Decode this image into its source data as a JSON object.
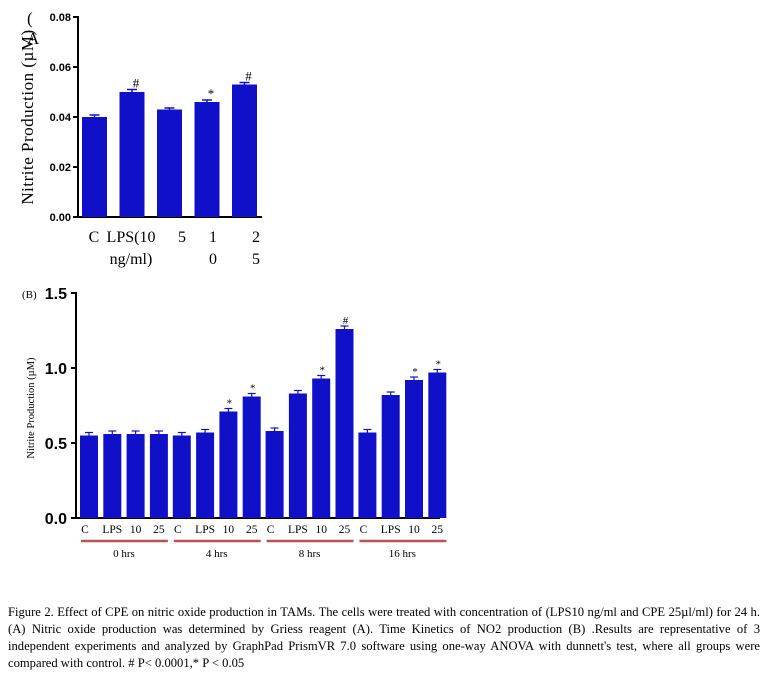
{
  "chart_data": [
    {
      "type": "bar",
      "panel_label": "(A",
      "ylabel": "Nitrite Production (µM)",
      "ylim": [
        0,
        0.08
      ],
      "yticks": [
        "0.00",
        "0.02",
        "0.04",
        "0.06",
        "0.08"
      ],
      "categories": [
        [
          "C"
        ],
        [
          "LPS(10",
          "ng/ml)"
        ],
        [
          "5"
        ],
        [
          "1",
          "0"
        ],
        [
          "2",
          "5"
        ]
      ],
      "values": [
        0.04,
        0.05,
        0.043,
        0.046,
        0.053
      ],
      "errors": [
        0.0008,
        0.001,
        0.0006,
        0.0008,
        0.0008
      ],
      "annotations": [
        "",
        "#",
        "",
        "*",
        "#"
      ],
      "bar_color": "#1010c8"
    },
    {
      "type": "bar",
      "panel_label": "(B)",
      "ylabel": "Nitrite Production (µM)",
      "ylim": [
        0,
        1.5
      ],
      "yticks": [
        "0.0",
        "0.5",
        "1.0",
        "1.5"
      ],
      "groups": [
        {
          "name": "0 hrs",
          "categories": [
            "C",
            "LPS",
            "10",
            "25"
          ],
          "values": [
            0.55,
            0.56,
            0.56,
            0.56
          ],
          "annotations": [
            "",
            "",
            "",
            ""
          ]
        },
        {
          "name": "4 hrs",
          "categories": [
            "C",
            "LPS",
            "10",
            "25"
          ],
          "values": [
            0.55,
            0.57,
            0.71,
            0.81
          ],
          "annotations": [
            "",
            "",
            "*",
            "*"
          ]
        },
        {
          "name": "8 hrs",
          "categories": [
            "C",
            "LPS",
            "10",
            "25"
          ],
          "values": [
            0.58,
            0.83,
            0.93,
            1.26
          ],
          "annotations": [
            "",
            "",
            "*",
            "#"
          ]
        },
        {
          "name": "16 hrs",
          "categories": [
            "C",
            "LPS",
            "10",
            "25"
          ],
          "values": [
            0.57,
            0.82,
            0.92,
            0.97
          ],
          "annotations": [
            "",
            "",
            "*",
            "*"
          ]
        }
      ],
      "bar_color": "#1010c8",
      "group_underline_color": "#c05050"
    }
  ],
  "caption": "Figure 2. Effect of CPE on nitric oxide production in TAMs. The cells were treated with concentration of (LPS10 ng/ml and CPE 25µl/ml) for 24 h. (A) Nitric oxide production was determined by Griess reagent (A). Time Kinetics of NO2 production (B) .Results are representative of 3 independent experiments  and analyzed by GraphPad PrismVR 7.0 software using one-way ANOVA  with dunnett's test, where all groups were compared with control. # P< 0.0001,* P < 0.05"
}
